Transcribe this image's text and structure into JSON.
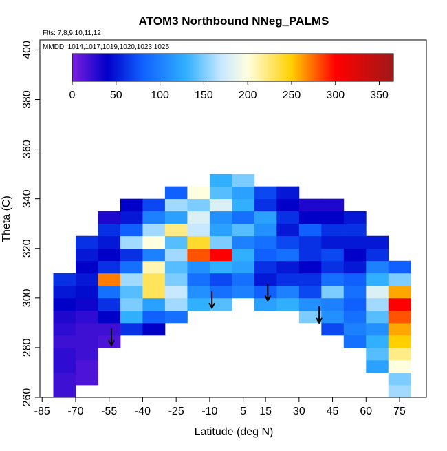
{
  "chart_data": {
    "type": "heatmap",
    "title": "ATOM3 Northbound NNeg_PALMS",
    "subtitle": "Flts: 7,8,9,10,11,12",
    "annotation": "MMDD: 1014,1017,1019,1020,1023,1025",
    "x_label": "Latitude (deg N)",
    "y_label": "Theta (C)",
    "x_edges": [
      -80,
      -70,
      -60,
      -50,
      -40,
      -30,
      -20,
      -10,
      0,
      10,
      20,
      30,
      40,
      50,
      60,
      70,
      80
    ],
    "y_edges": [
      260,
      265,
      270,
      275,
      280,
      285,
      290,
      295,
      300,
      305,
      310,
      315,
      320,
      325,
      330,
      335,
      340,
      345,
      350
    ],
    "z": [
      [
        20,
        null,
        null,
        null,
        null,
        null,
        null,
        null,
        null,
        null,
        null,
        null,
        null,
        null,
        null,
        160
      ],
      [
        20,
        15,
        null,
        null,
        null,
        null,
        null,
        null,
        null,
        null,
        null,
        null,
        null,
        null,
        null,
        150
      ],
      [
        25,
        15,
        null,
        null,
        null,
        null,
        null,
        null,
        null,
        null,
        null,
        null,
        null,
        null,
        120,
        200
      ],
      [
        25,
        20,
        null,
        null,
        null,
        null,
        null,
        null,
        null,
        null,
        null,
        null,
        null,
        null,
        140,
        220
      ],
      [
        20,
        20,
        15,
        null,
        null,
        null,
        null,
        null,
        null,
        null,
        null,
        null,
        null,
        90,
        130,
        250
      ],
      [
        25,
        20,
        20,
        60,
        40,
        null,
        null,
        null,
        null,
        null,
        null,
        null,
        70,
        100,
        110,
        260
      ],
      [
        30,
        25,
        40,
        130,
        80,
        90,
        null,
        null,
        null,
        null,
        null,
        150,
        110,
        90,
        140,
        280
      ],
      [
        40,
        35,
        60,
        150,
        120,
        160,
        130,
        140,
        null,
        120,
        130,
        110,
        100,
        80,
        160,
        300
      ],
      [
        50,
        45,
        90,
        140,
        230,
        170,
        110,
        90,
        100,
        80,
        100,
        70,
        150,
        90,
        180,
        260
      ],
      [
        60,
        50,
        270,
        160,
        230,
        150,
        90,
        70,
        90,
        50,
        60,
        60,
        90,
        80,
        130,
        150
      ],
      [
        null,
        40,
        60,
        90,
        210,
        140,
        110,
        130,
        120,
        60,
        50,
        40,
        60,
        50,
        100,
        80
      ],
      [
        null,
        50,
        40,
        60,
        100,
        160,
        280,
        300,
        130,
        80,
        90,
        60,
        70,
        40,
        60,
        null
      ],
      [
        null,
        60,
        50,
        160,
        200,
        140,
        240,
        150,
        100,
        90,
        70,
        60,
        50,
        50,
        50,
        null
      ],
      [
        null,
        null,
        60,
        80,
        160,
        220,
        170,
        120,
        140,
        110,
        50,
        80,
        60,
        60,
        null,
        null
      ],
      [
        null,
        null,
        30,
        50,
        100,
        120,
        180,
        110,
        90,
        120,
        60,
        40,
        40,
        50,
        null,
        null
      ],
      [
        null,
        null,
        null,
        40,
        70,
        160,
        150,
        180,
        130,
        60,
        40,
        30,
        30,
        null,
        null,
        null
      ],
      [
        null,
        null,
        null,
        null,
        null,
        80,
        200,
        140,
        120,
        70,
        50,
        null,
        null,
        null,
        null,
        null
      ],
      [
        null,
        null,
        null,
        null,
        null,
        null,
        null,
        130,
        150,
        null,
        null,
        null,
        null,
        null,
        null,
        null
      ]
    ],
    "arrows": {
      "x": [
        -54,
        -9,
        16,
        39
      ],
      "y": [
        281,
        296,
        299,
        290
      ]
    },
    "xlim": [
      -86,
      87
    ],
    "ylim": [
      260,
      404
    ],
    "xticks": [
      -85,
      -70,
      -55,
      -40,
      -25,
      -10,
      5,
      15,
      30,
      45,
      60,
      75
    ],
    "yticks": [
      260,
      280,
      300,
      320,
      340,
      360,
      380,
      400
    ],
    "colorbar": {
      "lim": [
        0,
        366
      ],
      "ticks": [
        0,
        50,
        100,
        150,
        200,
        250,
        300,
        350
      ],
      "stops": [
        0,
        40,
        80,
        130,
        170,
        200,
        250,
        300,
        366
      ],
      "colors": [
        "#7b1fe0",
        "#0000c8",
        "#1060ff",
        "#30b0ff",
        "#c8e8ff",
        "#ffffe0",
        "#ffd000",
        "#ff0000",
        "#a01818"
      ]
    }
  }
}
